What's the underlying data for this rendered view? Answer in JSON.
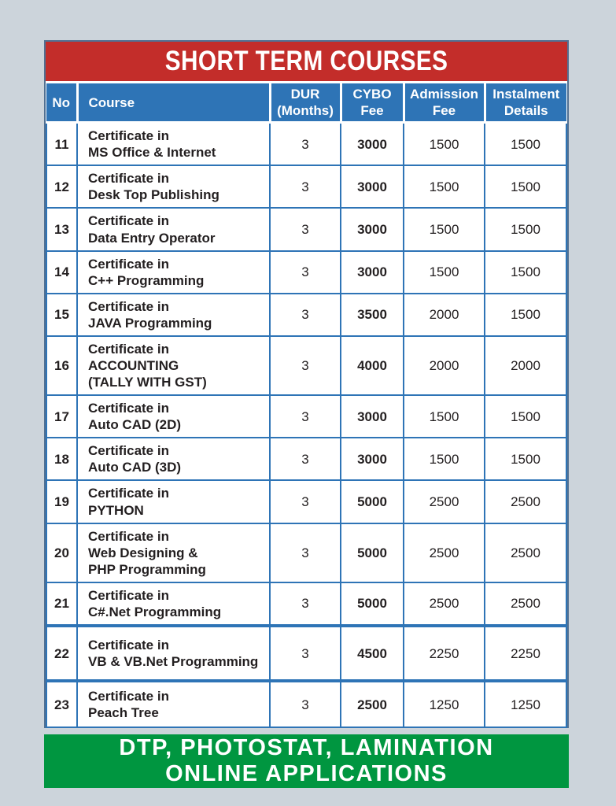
{
  "colors": {
    "page_bg": "#ccd4db",
    "banner_red": "#c32d2a",
    "table_blue": "#2e74b6",
    "footer_green": "#009640"
  },
  "title_banner": {
    "text": "SHORT TERM COURSES"
  },
  "table": {
    "columns": [
      {
        "key": "no",
        "label": "No"
      },
      {
        "key": "course",
        "label": "Course"
      },
      {
        "key": "dur",
        "label": "DUR\n(Months)"
      },
      {
        "key": "cybo",
        "label": "CYBO\nFee"
      },
      {
        "key": "admission",
        "label": "Admission\nFee"
      },
      {
        "key": "instalment",
        "label": "Instalment\nDetails"
      }
    ],
    "rows": [
      {
        "no": "11",
        "course": "Certificate in\nMS Office  & Internet",
        "dur": "3",
        "cybo": "3000",
        "admission": "1500",
        "instalment": "1500"
      },
      {
        "no": "12",
        "course": "Certificate in\nDesk Top Publishing",
        "dur": "3",
        "cybo": "3000",
        "admission": "1500",
        "instalment": "1500"
      },
      {
        "no": "13",
        "course": "Certificate in\nData  Entry Operator",
        "dur": "3",
        "cybo": "3000",
        "admission": "1500",
        "instalment": "1500"
      },
      {
        "no": "14",
        "course": "Certificate in\nC++ Programming",
        "dur": "3",
        "cybo": "3000",
        "admission": "1500",
        "instalment": "1500"
      },
      {
        "no": "15",
        "course": "Certificate in\nJAVA Programming",
        "dur": "3",
        "cybo": "3500",
        "admission": "2000",
        "instalment": "1500"
      },
      {
        "no": "16",
        "course": "Certificate in\nACCOUNTING\n(TALLY WITH GST)",
        "dur": "3",
        "cybo": "4000",
        "admission": "2000",
        "instalment": "2000"
      },
      {
        "no": "17",
        "course": "Certificate in\nAuto CAD (2D)",
        "dur": "3",
        "cybo": "3000",
        "admission": "1500",
        "instalment": "1500"
      },
      {
        "no": "18",
        "course": "Certificate in\nAuto CAD (3D)",
        "dur": "3",
        "cybo": "3000",
        "admission": "1500",
        "instalment": "1500"
      },
      {
        "no": "19",
        "course": "Certificate in\nPYTHON",
        "dur": "3",
        "cybo": "5000",
        "admission": "2500",
        "instalment": "2500"
      },
      {
        "no": "20",
        "course": "Certificate in\nWeb Designing &\nPHP Programming",
        "dur": "3",
        "cybo": "5000",
        "admission": "2500",
        "instalment": "2500"
      },
      {
        "no": "21",
        "course": "Certificate in\nC#.Net  Programming",
        "dur": "3",
        "cybo": "5000",
        "admission": "2500",
        "instalment": "2500"
      },
      {
        "no": "22",
        "course": "Certificate in\nVB & VB.Net Programming",
        "dur": "3",
        "cybo": "4500",
        "admission": "2250",
        "instalment": "2250"
      },
      {
        "no": "23",
        "course": "Certificate in\nPeach Tree",
        "dur": "3",
        "cybo": "2500",
        "admission": "1250",
        "instalment": "1250"
      }
    ]
  },
  "footer_banner": {
    "line1": "DTP, PHOTOSTAT, LAMINATION",
    "line2": "ONLINE APPLICATIONS"
  }
}
